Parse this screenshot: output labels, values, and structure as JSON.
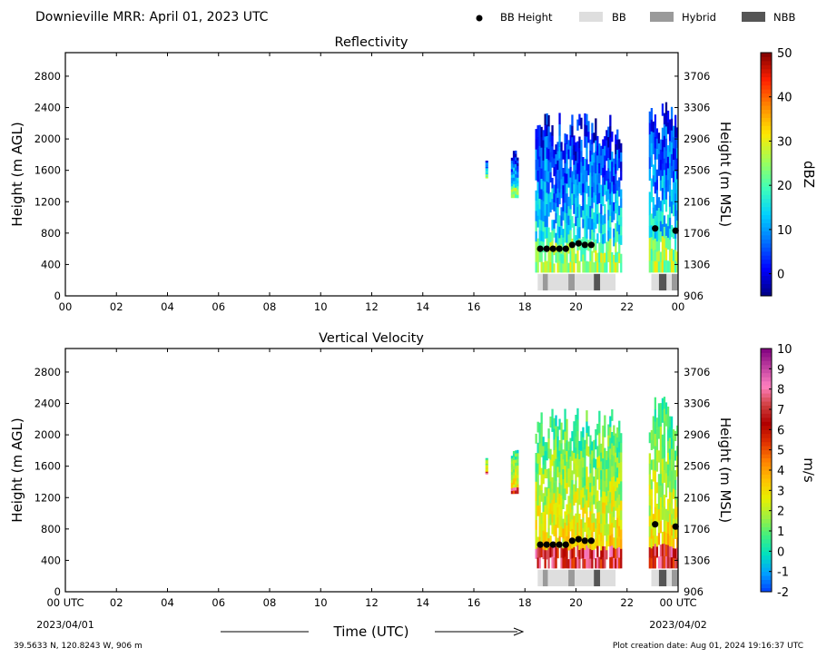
{
  "header": {
    "title": "Downieville MRR:  April 01, 2023 UTC",
    "legend": [
      {
        "label": "BB Height",
        "kind": "dot",
        "color": "#000000"
      },
      {
        "label": "BB",
        "kind": "box",
        "color": "#dedede"
      },
      {
        "label": "Hybrid",
        "kind": "box",
        "color": "#9a9a9a"
      },
      {
        "label": "NBB",
        "kind": "box",
        "color": "#555555"
      }
    ]
  },
  "footer": {
    "location": "39.5633 N, 120.8243 W, 906 m",
    "created": "Plot creation date: Aug 01, 2024 19:16:37 UTC"
  },
  "chart_data": [
    {
      "type": "heatmap",
      "title": "Reflectivity",
      "ylabel": "Height (m AGL)",
      "y2label": "Height (m MSL)",
      "xlabel": "",
      "xlim": [
        0,
        24
      ],
      "ylim": [
        0,
        3100
      ],
      "xticks": [
        "00",
        "02",
        "04",
        "06",
        "08",
        "10",
        "12",
        "14",
        "16",
        "18",
        "20",
        "22",
        "00"
      ],
      "yticks": [
        0,
        400,
        800,
        1200,
        1600,
        2000,
        2400,
        2800
      ],
      "y2ticks": [
        "906",
        "1306",
        "1706",
        "2106",
        "2506",
        "2906",
        "3306",
        "3706"
      ],
      "colorbar": {
        "label": "dBZ",
        "min": -5,
        "max": 50,
        "ticks": [
          0,
          10,
          20,
          30,
          40,
          50
        ],
        "colors": [
          "#00007f",
          "#0000ff",
          "#0070ff",
          "#00d0ff",
          "#40ffb8",
          "#a0ff58",
          "#ffe800",
          "#ff8a00",
          "#ff2000",
          "#7f0000"
        ]
      },
      "echo_segments": [
        {
          "start": 16.45,
          "end": 16.55,
          "top": 1700,
          "bottom": 1500
        },
        {
          "start": 17.45,
          "end": 17.75,
          "top": 1800,
          "bottom": 1250
        },
        {
          "start": 18.4,
          "end": 21.8,
          "top": 2100,
          "bottom": 300
        },
        {
          "start": 22.85,
          "end": 24.0,
          "top": 2250,
          "bottom": 300
        }
      ],
      "bb_height": [
        {
          "x": 18.6,
          "y": 600
        },
        {
          "x": 18.85,
          "y": 600
        },
        {
          "x": 19.1,
          "y": 600
        },
        {
          "x": 19.35,
          "y": 600
        },
        {
          "x": 19.6,
          "y": 600
        },
        {
          "x": 19.85,
          "y": 650
        },
        {
          "x": 20.1,
          "y": 670
        },
        {
          "x": 20.35,
          "y": 650
        },
        {
          "x": 20.6,
          "y": 650
        },
        {
          "x": 23.1,
          "y": 860
        },
        {
          "x": 23.9,
          "y": 830
        }
      ],
      "bb_type": [
        {
          "start": 18.5,
          "end": 18.7,
          "type": "BB"
        },
        {
          "start": 18.7,
          "end": 18.9,
          "type": "Hybrid"
        },
        {
          "start": 18.9,
          "end": 19.7,
          "type": "BB"
        },
        {
          "start": 19.7,
          "end": 19.95,
          "type": "Hybrid"
        },
        {
          "start": 19.95,
          "end": 20.7,
          "type": "BB"
        },
        {
          "start": 20.7,
          "end": 20.95,
          "type": "NBB"
        },
        {
          "start": 20.95,
          "end": 21.55,
          "type": "BB"
        },
        {
          "start": 22.95,
          "end": 23.25,
          "type": "BB"
        },
        {
          "start": 23.25,
          "end": 23.55,
          "type": "NBB"
        },
        {
          "start": 23.55,
          "end": 23.75,
          "type": "BB"
        },
        {
          "start": 23.75,
          "end": 24.0,
          "type": "Hybrid"
        }
      ]
    },
    {
      "type": "heatmap",
      "title": "Vertical Velocity",
      "ylabel": "Height (m AGL)",
      "y2label": "Height (m MSL)",
      "xlabel": "Time (UTC)",
      "xlim": [
        0,
        24
      ],
      "ylim": [
        0,
        3100
      ],
      "xticks": [
        "00 UTC",
        "02",
        "04",
        "06",
        "08",
        "10",
        "12",
        "14",
        "16",
        "18",
        "20",
        "22",
        "00 UTC"
      ],
      "xsublabels": {
        "left": "2023/04/01",
        "right": "2023/04/02"
      },
      "yticks": [
        0,
        400,
        800,
        1200,
        1600,
        2000,
        2400,
        2800
      ],
      "y2ticks": [
        "906",
        "1306",
        "1706",
        "2106",
        "2506",
        "2906",
        "3306",
        "3706"
      ],
      "colorbar": {
        "label": "m/s",
        "min": -2,
        "max": 10,
        "ticks": [
          -2,
          -1,
          0,
          1,
          2,
          3,
          4,
          5,
          6,
          7,
          8,
          9,
          10
        ],
        "colors": [
          "#0040ff",
          "#00a0ff",
          "#00e0c0",
          "#40f080",
          "#a0f040",
          "#e8f000",
          "#ffc000",
          "#ff8000",
          "#e03000",
          "#b00000",
          "#d04040",
          "#ff80c0",
          "#c040a0",
          "#800080"
        ]
      },
      "echo_segments": [
        {
          "start": 16.45,
          "end": 16.55,
          "top": 1700,
          "bottom": 1500
        },
        {
          "start": 17.45,
          "end": 17.75,
          "top": 1800,
          "bottom": 1250
        },
        {
          "start": 18.4,
          "end": 21.8,
          "top": 2100,
          "bottom": 300
        },
        {
          "start": 22.85,
          "end": 24.0,
          "top": 2250,
          "bottom": 300
        }
      ],
      "bb_height": [
        {
          "x": 18.6,
          "y": 600
        },
        {
          "x": 18.85,
          "y": 600
        },
        {
          "x": 19.1,
          "y": 600
        },
        {
          "x": 19.35,
          "y": 600
        },
        {
          "x": 19.6,
          "y": 600
        },
        {
          "x": 19.85,
          "y": 650
        },
        {
          "x": 20.1,
          "y": 670
        },
        {
          "x": 20.35,
          "y": 650
        },
        {
          "x": 20.6,
          "y": 650
        },
        {
          "x": 23.1,
          "y": 860
        },
        {
          "x": 23.9,
          "y": 830
        }
      ],
      "bb_type": [
        {
          "start": 18.5,
          "end": 18.7,
          "type": "BB"
        },
        {
          "start": 18.7,
          "end": 18.9,
          "type": "Hybrid"
        },
        {
          "start": 18.9,
          "end": 19.7,
          "type": "BB"
        },
        {
          "start": 19.7,
          "end": 19.95,
          "type": "Hybrid"
        },
        {
          "start": 19.95,
          "end": 20.7,
          "type": "BB"
        },
        {
          "start": 20.7,
          "end": 20.95,
          "type": "NBB"
        },
        {
          "start": 20.95,
          "end": 21.55,
          "type": "BB"
        },
        {
          "start": 22.95,
          "end": 23.25,
          "type": "BB"
        },
        {
          "start": 23.25,
          "end": 23.55,
          "type": "NBB"
        },
        {
          "start": 23.55,
          "end": 23.75,
          "type": "BB"
        },
        {
          "start": 23.75,
          "end": 24.0,
          "type": "Hybrid"
        }
      ]
    }
  ]
}
